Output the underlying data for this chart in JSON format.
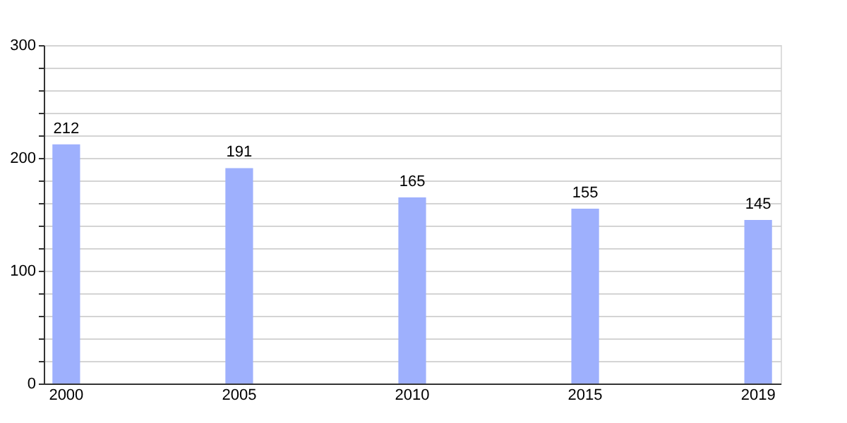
{
  "chart_data": {
    "type": "bar",
    "categories": [
      "2000",
      "2005",
      "2010",
      "2015",
      "2019"
    ],
    "values": [
      212,
      191,
      165,
      155,
      145
    ],
    "color": "#9eb0fd",
    "ylim": [
      0,
      300
    ],
    "yticks": [
      0,
      {
        "value": 20,
        "label": null
      },
      {
        "value": 40,
        "label": null
      },
      {
        "value": 60,
        "label": null
      },
      {
        "value": 80,
        "label": null
      },
      100,
      {
        "value": 120,
        "label": null
      },
      {
        "value": 140,
        "label": null
      },
      {
        "value": 160,
        "label": null
      },
      {
        "value": 180,
        "label": null
      },
      200,
      {
        "value": 220,
        "label": null
      },
      {
        "value": 240,
        "label": null
      },
      {
        "value": 260,
        "label": null
      },
      {
        "value": 280,
        "label": null
      },
      300
    ],
    "grid": "y",
    "data_labels": true
  }
}
